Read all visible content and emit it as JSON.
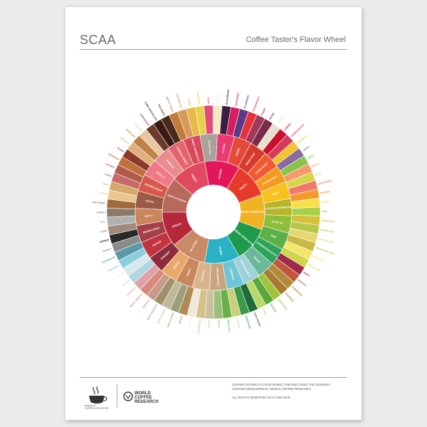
{
  "header": {
    "title_left": "SCAA",
    "title_right": "Coffee Taster's Flavor Wheel"
  },
  "wheel": {
    "inner": [
      {
        "label": "FLORAL",
        "color": "#e2175a"
      },
      {
        "label": "FRUITY",
        "color": "#e63a2b"
      },
      {
        "label": "SOUR/\nFERMENTED",
        "color": "#f0b323"
      },
      {
        "label": "GREEN/\nVEGETATIVE",
        "color": "#1f9a4c"
      },
      {
        "label": "OTHER",
        "color": "#2ab1c3"
      },
      {
        "label": "ROASTED",
        "color": "#c98a66"
      },
      {
        "label": "SPICES",
        "color": "#b5283a"
      },
      {
        "label": "NUTTY/\nCOCOA",
        "color": "#b7695c"
      },
      {
        "label": "SWEET",
        "color": "#e04a5f"
      }
    ],
    "middle": [
      {
        "label": "BLACK TEA",
        "color": "#a8a29a"
      },
      {
        "label": "FLORAL",
        "color": "#e83a70"
      },
      {
        "label": "BERRY",
        "color": "#e44a3a"
      },
      {
        "label": "DRIED FRUIT",
        "color": "#d93a2e"
      },
      {
        "label": "OTHER FRUIT",
        "color": "#ef5a30"
      },
      {
        "label": "CITRUS FRUIT",
        "color": "#f49a1f"
      },
      {
        "label": "SOUR",
        "color": "#f6c21c"
      },
      {
        "label": "ALCOHOL/FERMENTED",
        "color": "#b7b52a"
      },
      {
        "label": "OLIVE OIL",
        "color": "#8fbf3a"
      },
      {
        "label": "RAW",
        "color": "#5bb04a"
      },
      {
        "label": "GREEN/VEGETATIVE",
        "color": "#2ea35a"
      },
      {
        "label": "BEANY",
        "color": "#6bb89a"
      },
      {
        "label": "PAPERY/MUSTY",
        "color": "#9ed1d8"
      },
      {
        "label": "CHEMICAL",
        "color": "#6fc6d4"
      },
      {
        "label": "PIPE TOBACCO",
        "color": "#c9a57f"
      },
      {
        "label": "TOBACCO",
        "color": "#d9b48a"
      },
      {
        "label": "BURNT",
        "color": "#c9875e"
      },
      {
        "label": "CEREAL",
        "color": "#e9a96a"
      },
      {
        "label": "PUNGENT",
        "color": "#8c2b3a"
      },
      {
        "label": "PEPPER",
        "color": "#c23440"
      },
      {
        "label": "BROWN SPICE",
        "color": "#a63e48"
      },
      {
        "label": "NUTTY",
        "color": "#c9865a"
      },
      {
        "label": "COCOA",
        "color": "#9b5a46"
      },
      {
        "label": "BROWN SUGAR",
        "color": "#d8584a"
      },
      {
        "label": "VANILLA",
        "color": "#ef7a86"
      },
      {
        "label": "VANILLIN",
        "color": "#e98c8e"
      },
      {
        "label": "OVERALL SWEET",
        "color": "#e2646e"
      },
      {
        "label": "SWEET AROMATICS",
        "color": "#d9485c"
      }
    ],
    "outer": [
      {
        "label": "CHAMOMILE",
        "color": "#e8d24a"
      },
      {
        "label": "ROSE",
        "color": "#e14a7a"
      },
      {
        "label": "JASMINE",
        "color": "#f3e9c7"
      },
      {
        "label": "BLACKBERRY",
        "color": "#3b1f3e"
      },
      {
        "label": "RASPBERRY",
        "color": "#d81d5e"
      },
      {
        "label": "BLUEBERRY",
        "color": "#5a3a86"
      },
      {
        "label": "STRAWBERRY",
        "color": "#e8323a"
      },
      {
        "label": "RAISIN",
        "color": "#a03a5a"
      },
      {
        "label": "PRUNE",
        "color": "#7a2a4a"
      },
      {
        "label": "COCONUT",
        "color": "#e8e0cc"
      },
      {
        "label": "CHERRY",
        "color": "#c8102e"
      },
      {
        "label": "POMEGRANATE",
        "color": "#d63a5a"
      },
      {
        "label": "PINEAPPLE",
        "color": "#f2c230"
      },
      {
        "label": "GRAPE",
        "color": "#8a6aa0"
      },
      {
        "label": "APPLE",
        "color": "#8bc34a"
      },
      {
        "label": "PEACH",
        "color": "#f59a6a"
      },
      {
        "label": "PEAR",
        "color": "#d7d64a"
      },
      {
        "label": "GRAPEFRUIT",
        "color": "#f1786a"
      },
      {
        "label": "ORANGE",
        "color": "#f39a2a"
      },
      {
        "label": "LEMON",
        "color": "#f6e04a"
      },
      {
        "label": "LIME",
        "color": "#a8d04a"
      },
      {
        "label": "SOUR AROMATICS",
        "color": "#d6c23a"
      },
      {
        "label": "ACETIC ACID",
        "color": "#b6c84a"
      },
      {
        "label": "BUTYRIC ACID",
        "color": "#e6d870"
      },
      {
        "label": "ISOVALERIC ACID",
        "color": "#c9b84a"
      },
      {
        "label": "CITRIC ACID",
        "color": "#f3e66a"
      },
      {
        "label": "MALIC ACID",
        "color": "#cfd64a"
      },
      {
        "label": "WINEY",
        "color": "#a0284a"
      },
      {
        "label": "WHISKEY",
        "color": "#c0563a"
      },
      {
        "label": "FERMENTED",
        "color": "#b08a3a"
      },
      {
        "label": "OVERRIPE",
        "color": "#a87a30"
      },
      {
        "label": "UNDER-RIPE",
        "color": "#9ec43a"
      },
      {
        "label": "PEAPOD",
        "color": "#5aa83a"
      },
      {
        "label": "FRESH",
        "color": "#b8d86a"
      },
      {
        "label": "DARK GREEN",
        "color": "#1e6a3a"
      },
      {
        "label": "VEGETATIVE",
        "color": "#3a9a4a"
      },
      {
        "label": "HAY-LIKE",
        "color": "#c8d07a"
      },
      {
        "label": "HERB-LIKE",
        "color": "#6ab04a"
      },
      {
        "label": "BEANY",
        "color": "#9ac07a"
      },
      {
        "label": "STALE",
        "color": "#c8c0a0"
      },
      {
        "label": "CARDBOARD",
        "color": "#d8c08a"
      },
      {
        "label": "PAPERY",
        "color": "#f0e8d8"
      },
      {
        "label": "WOODY",
        "color": "#b08a5a"
      },
      {
        "label": "MOLDY/DAMP",
        "color": "#9aa07a"
      },
      {
        "label": "MUSTY/DUSTY",
        "color": "#c0b89a"
      },
      {
        "label": "MUSTY/EARTHY",
        "color": "#a0906a"
      },
      {
        "label": "ANIMALIC",
        "color": "#c89a8a"
      },
      {
        "label": "MEATY BROTHY",
        "color": "#d88a7a"
      },
      {
        "label": "PHENOLIC",
        "color": "#e0a0a8"
      },
      {
        "label": "BITTER",
        "color": "#b0d8e0"
      },
      {
        "label": "SALTY",
        "color": "#d8e8ec"
      },
      {
        "label": "MEDICINAL",
        "color": "#8ad0dc"
      },
      {
        "label": "PETROLEUM",
        "color": "#5a9aa8"
      },
      {
        "label": "SKUNKY",
        "color": "#8a8a8a"
      },
      {
        "label": "RUBBER",
        "color": "#2a2a2a"
      },
      {
        "label": "ACRID",
        "color": "#a08a7a"
      },
      {
        "label": "ASHY",
        "color": "#b0b0b0"
      },
      {
        "label": "SMOKY",
        "color": "#8a7a6a"
      },
      {
        "label": "BROWN, ROAST",
        "color": "#a06a3a"
      },
      {
        "label": "GRAIN",
        "color": "#e8c88a"
      },
      {
        "label": "MALT",
        "color": "#d8a86a"
      },
      {
        "label": "ANISE",
        "color": "#c86a6a"
      },
      {
        "label": "NUTMEG",
        "color": "#b05a4a"
      },
      {
        "label": "CINNAMON",
        "color": "#c0703a"
      },
      {
        "label": "CLOVE",
        "color": "#8a3a2a"
      },
      {
        "label": "PEANUTS",
        "color": "#e0b07a"
      },
      {
        "label": "HAZELNUT",
        "color": "#c0804a"
      },
      {
        "label": "ALMOND",
        "color": "#e8c8a0"
      },
      {
        "label": "CHOCOLATE",
        "color": "#6a3a2a"
      },
      {
        "label": "DARK CHOCOLATE",
        "color": "#3a1a12"
      },
      {
        "label": "MOLASSES",
        "color": "#4a2a1a"
      },
      {
        "label": "MAPLE SYRUP",
        "color": "#c07a3a"
      },
      {
        "label": "CARAMELIZED",
        "color": "#d89a5a"
      },
      {
        "label": "HONEY",
        "color": "#e8b84a"
      }
    ]
  },
  "footer": {
    "scaa_text": [
      "SPECIALTY",
      "COFFEE ASSOCIATION",
      "OF AMERICA"
    ],
    "wcr_text": [
      "WORLD",
      "COFFEE",
      "RESEARCH"
    ],
    "lines": [
      "COFFEE TASTER'S FLAVOR WHEEL CREATED USING THE SENSORY",
      "LEXICON DEVELOPED BY WORLD COFFEE RESEARCH",
      "",
      "ALL RIGHTS RESERVED SCAA AND WCR"
    ]
  }
}
